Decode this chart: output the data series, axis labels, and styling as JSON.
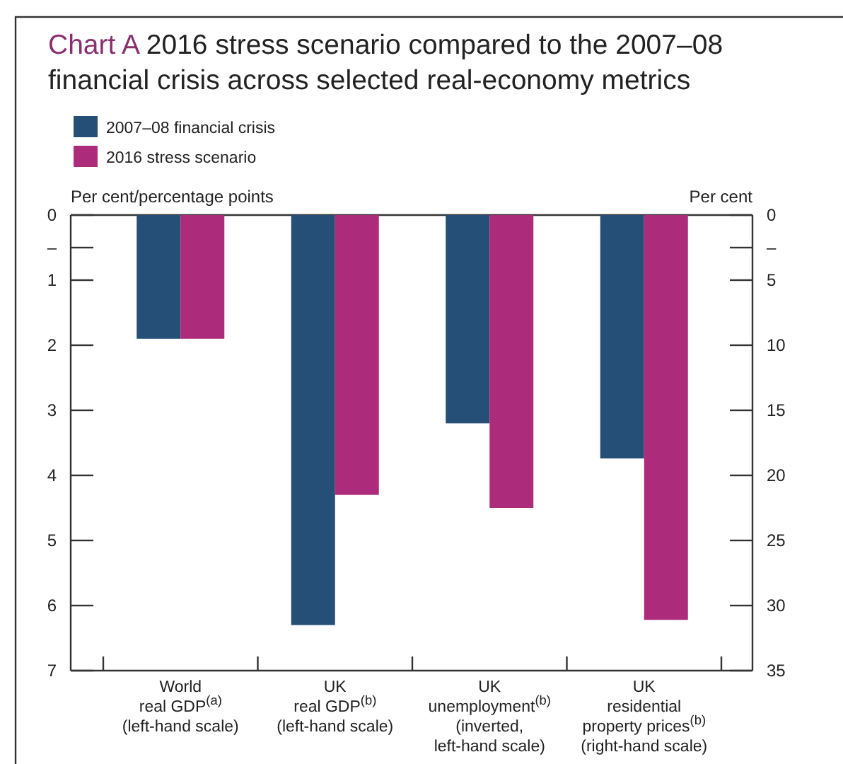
{
  "chart_data": {
    "type": "bar",
    "title": "Chart A 2016 stress scenario compared to the 2007–08 financial crisis across selected real-economy metrics",
    "ylabel": "Per cent/percentage points",
    "y2label": "Per cent",
    "categories": [
      "World\nreal GDP$^{(a)}$\n(left-hand scale)",
      "UK\nreal GDP$^{(b)}$\n(left-hand scale)",
      "UK\nunemployment$^{(b)}$\n(inverted,\nleft-hand scale)",
      "UK\nresidential\nproperty prices$^{(b)}$\n(right-hand scale)"
    ],
    "series": [
      {
        "name": "2007–08 financial crisis",
        "color": "#254f77",
        "values": [
          1.9,
          6.3,
          3.2,
          null
        ]
      },
      {
        "name": "2016 stress scenario",
        "color": "#ad2b7b",
        "values": [
          1.9,
          4.3,
          4.5,
          null
        ]
      },
      {
        "color": "#254f77",
        "axis": "y2",
        "values": [
          null,
          null,
          null,
          18.7
        ]
      },
      {
        "color": "#ad2b7b",
        "axis": "y2",
        "values": [
          null,
          null,
          null,
          31.1
        ]
      }
    ],
    "ylim": [
      7,
      0
    ],
    "yticks": [
      0,
      {
        "value": 0.5,
        "label": "–"
      },
      1,
      2,
      3,
      4,
      5,
      6,
      7
    ],
    "y2lim": [
      35,
      0
    ],
    "y2ticks": [
      0,
      {
        "value": 2.5,
        "label": "–"
      },
      5,
      10,
      15,
      20,
      25,
      30,
      35
    ],
    "legend": "top left",
    "grid": false
  }
}
